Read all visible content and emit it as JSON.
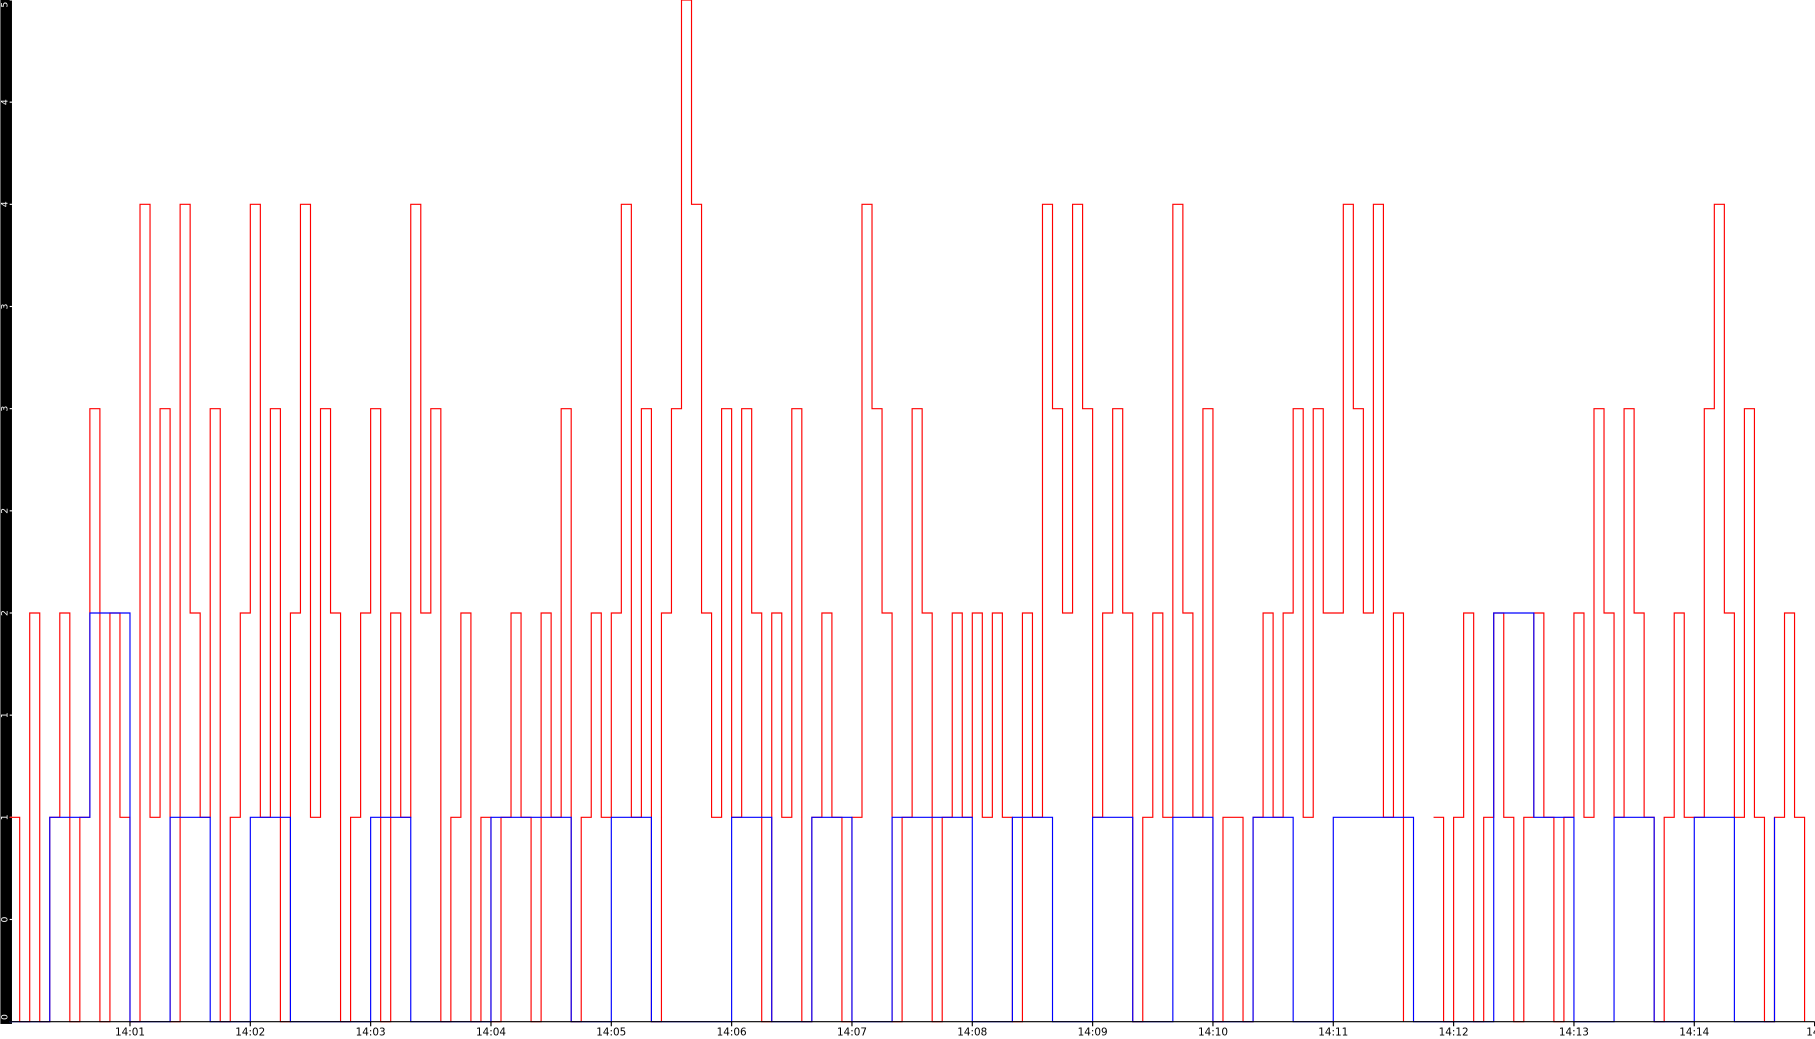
{
  "chart_data": {
    "type": "line",
    "xlim": [
      0,
      900
    ],
    "xticks": [
      {
        "value": 60,
        "label": "14:01"
      },
      {
        "value": 120,
        "label": "14:02"
      },
      {
        "value": 180,
        "label": "14:03"
      },
      {
        "value": 240,
        "label": "14:04"
      },
      {
        "value": 300,
        "label": "14:05"
      },
      {
        "value": 360,
        "label": "14:06"
      },
      {
        "value": 420,
        "label": "14:07"
      },
      {
        "value": 480,
        "label": "14:08"
      },
      {
        "value": 540,
        "label": "14:09"
      },
      {
        "value": 600,
        "label": "14:10"
      },
      {
        "value": 660,
        "label": "14:11"
      },
      {
        "value": 720,
        "label": "14:12"
      },
      {
        "value": 780,
        "label": "14:13"
      },
      {
        "value": 840,
        "label": "14:14"
      },
      {
        "value": 900,
        "label": "14:"
      }
    ],
    "ylim": [
      0,
      5
    ],
    "yticks": [
      0,
      {
        "value": 0.5,
        "label": "0"
      },
      1,
      {
        "value": 1.5,
        "label": "1"
      },
      2,
      {
        "value": 2.5,
        "label": "2"
      },
      3,
      {
        "value": 3.5,
        "label": "3"
      },
      4,
      {
        "value": 4.5,
        "label": "4"
      },
      5
    ],
    "series": [
      {
        "name": "red",
        "color": "#ff0000",
        "x": [
          0,
          5,
          10,
          15,
          20,
          25,
          30,
          35,
          40,
          45,
          50,
          55,
          60,
          65,
          70,
          75,
          80,
          85,
          90,
          95,
          100,
          105,
          110,
          115,
          120,
          125,
          130,
          135,
          140,
          145,
          150,
          155,
          160,
          165,
          170,
          175,
          180,
          185,
          190,
          195,
          200,
          205,
          210,
          215,
          220,
          225,
          230,
          235,
          240,
          245,
          250,
          255,
          260,
          265,
          270,
          275,
          280,
          285,
          290,
          295,
          300,
          305,
          310,
          315,
          320,
          325,
          330,
          335,
          340,
          345,
          350,
          355,
          360,
          365,
          370,
          375,
          380,
          385,
          390,
          395,
          400,
          405,
          410,
          415,
          420,
          425,
          430,
          435,
          440,
          445,
          450,
          455,
          460,
          465,
          470,
          475,
          480,
          485,
          490,
          495,
          500,
          505,
          510,
          515,
          520,
          525,
          530,
          535,
          540,
          545,
          550,
          555,
          560,
          565,
          570,
          575,
          580,
          585,
          590,
          595,
          600,
          605,
          610,
          615,
          620,
          625,
          630,
          635,
          640,
          645,
          650,
          655,
          660,
          665,
          670,
          675,
          680,
          685,
          690,
          695,
          700,
          705,
          710,
          715,
          720,
          725,
          730,
          735,
          740,
          745,
          750,
          755,
          760,
          765,
          770,
          775,
          780,
          785,
          790,
          795,
          800,
          805,
          810,
          815,
          820,
          825,
          830,
          835,
          840,
          845,
          850,
          855,
          860,
          865,
          870,
          875,
          880,
          885,
          890,
          895
        ],
        "values": [
          1,
          0,
          2,
          0,
          1,
          2,
          0,
          1,
          3,
          0,
          2,
          1,
          0,
          4,
          1,
          3,
          0,
          4,
          2,
          1,
          3,
          0,
          1,
          2,
          4,
          1,
          3,
          0,
          2,
          4,
          1,
          3,
          2,
          0,
          1,
          2,
          3,
          0,
          2,
          1,
          4,
          2,
          3,
          0,
          1,
          2,
          0,
          1,
          0,
          1,
          2,
          1,
          0,
          2,
          1,
          3,
          0,
          1,
          2,
          1,
          2,
          4,
          1,
          3,
          0,
          2,
          3,
          5,
          4,
          2,
          1,
          3,
          1,
          3,
          2,
          0,
          2,
          1,
          3,
          0,
          1,
          2,
          1,
          0,
          1,
          4,
          3,
          2,
          0,
          1,
          3,
          2,
          0,
          1,
          2,
          1,
          2,
          1,
          2,
          1,
          0,
          2,
          1,
          4,
          3,
          2,
          4,
          3,
          1,
          2,
          3,
          2,
          0,
          1,
          2,
          1,
          4,
          2,
          1,
          3,
          0,
          1,
          1,
          0,
          1,
          2,
          1,
          2,
          3,
          1,
          3,
          2,
          2,
          4,
          3,
          2,
          4,
          1,
          2,
          0,
          null,
          null,
          1,
          0,
          1,
          2,
          0,
          1,
          2,
          1,
          0,
          1,
          2,
          1,
          0,
          1,
          2,
          1,
          3,
          2,
          1,
          3,
          2,
          1,
          0,
          1,
          2,
          1,
          1,
          3,
          4,
          2,
          1,
          3,
          1,
          0,
          1,
          2,
          1,
          0
        ]
      },
      {
        "name": "blue",
        "color": "#0000ff",
        "x": [
          0,
          20,
          40,
          60,
          80,
          100,
          120,
          140,
          160,
          180,
          200,
          220,
          240,
          260,
          280,
          300,
          320,
          340,
          360,
          380,
          400,
          420,
          440,
          460,
          480,
          500,
          520,
          540,
          560,
          580,
          600,
          620,
          640,
          660,
          680,
          700,
          720,
          740,
          760,
          780,
          800,
          820,
          840,
          860,
          880
        ],
        "values": [
          0,
          1,
          2,
          0,
          1,
          0,
          1,
          0,
          0,
          1,
          0,
          0,
          1,
          1,
          0,
          1,
          0,
          0,
          1,
          0,
          1,
          0,
          1,
          1,
          0,
          1,
          0,
          1,
          0,
          1,
          0,
          1,
          0,
          1,
          1,
          0,
          0,
          2,
          1,
          0,
          1,
          0,
          1,
          0,
          1
        ]
      }
    ]
  }
}
